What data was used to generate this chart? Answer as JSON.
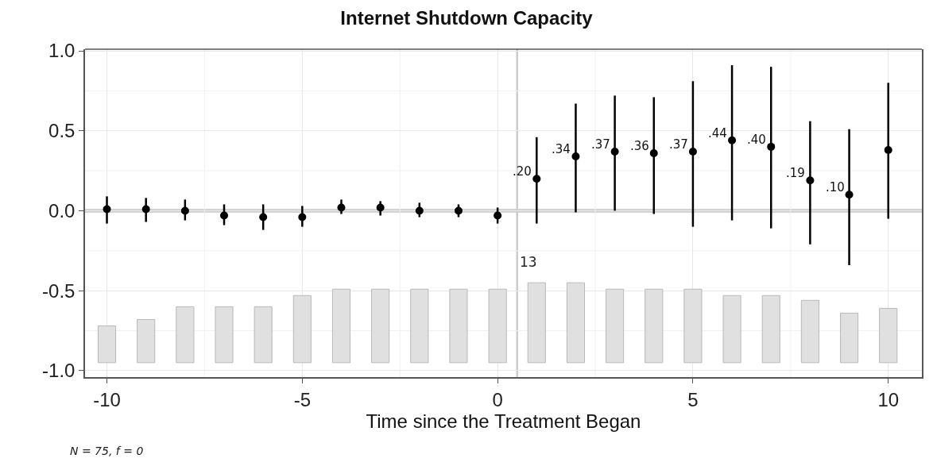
{
  "chart_data": {
    "type": "bar",
    "title": "Internet Shutdown Capacity",
    "xlabel": "Time since the Treatment Began",
    "series": [
      {
        "color": "#e0e0e0",
        "x": [
          -10,
          -9,
          -8,
          -7,
          -6,
          -5,
          -4,
          -3,
          -2,
          -1,
          0,
          1,
          2,
          3,
          4,
          5,
          6,
          7,
          8,
          9,
          10
        ],
        "base": [
          -0.95,
          -0.95,
          -0.95,
          -0.95,
          -0.95,
          -0.95,
          -0.95,
          -0.95,
          -0.95,
          -0.95,
          -0.95,
          -0.95,
          -0.95,
          -0.95,
          -0.95,
          -0.95,
          -0.95,
          -0.95,
          -0.95,
          -0.95,
          -0.95
        ],
        "values": [
          0.23,
          0.27,
          0.35,
          0.35,
          0.35,
          0.42,
          0.46,
          0.46,
          0.46,
          0.46,
          0.46,
          0.5,
          0.5,
          0.46,
          0.46,
          0.46,
          0.42,
          0.42,
          0.39,
          0.31,
          0.34
        ]
      },
      {
        "type": "scatter",
        "color": "#000000",
        "marker": "circle",
        "x": [
          -10,
          -9,
          -8,
          -7,
          -6,
          -5,
          -4,
          -3,
          -2,
          -1,
          0,
          1,
          2,
          3,
          4,
          5,
          6,
          7,
          8,
          9,
          10
        ],
        "values": [
          0.01,
          0.01,
          0.0,
          -0.03,
          -0.04,
          -0.04,
          0.02,
          0.02,
          0.0,
          0.0,
          -0.03,
          0.2,
          0.34,
          0.37,
          0.36,
          0.37,
          0.44,
          0.4,
          0.19,
          0.1,
          0.38
        ],
        "errors": [
          [
            -0.08,
            0.09
          ],
          [
            -0.07,
            0.08
          ],
          [
            -0.06,
            0.07
          ],
          [
            -0.09,
            0.04
          ],
          [
            -0.12,
            0.04
          ],
          [
            -0.1,
            0.03
          ],
          [
            -0.02,
            0.07
          ],
          [
            -0.03,
            0.06
          ],
          [
            -0.04,
            0.05
          ],
          [
            -0.04,
            0.04
          ],
          [
            -0.08,
            0.02
          ],
          [
            -0.08,
            0.46
          ],
          [
            -0.01,
            0.67
          ],
          [
            0.0,
            0.72
          ],
          [
            -0.02,
            0.71
          ],
          [
            -0.1,
            0.81
          ],
          [
            -0.06,
            0.91
          ],
          [
            -0.11,
            0.9
          ],
          [
            -0.21,
            0.56
          ],
          [
            -0.34,
            0.51
          ],
          [
            -0.05,
            0.8
          ]
        ],
        "value_labels": [
          null,
          null,
          null,
          null,
          null,
          null,
          null,
          null,
          null,
          null,
          null,
          ".20",
          ".34",
          ".37",
          ".36",
          ".37",
          ".44",
          ".40",
          ".19",
          ".10",
          null
        ]
      }
    ],
    "xlim": [
      -10.56,
      10.86
    ],
    "xticks": [
      -10,
      -5,
      0,
      5,
      10
    ],
    "ylim": [
      -1.04,
      1.01
    ],
    "yticks": [
      {
        "value": -1,
        "label": "-1.0"
      },
      {
        "value": -0.5,
        "label": "-0.5"
      },
      {
        "value": 0,
        "label": "0.0"
      },
      {
        "value": 0.5,
        "label": "0.5"
      },
      {
        "value": 1,
        "label": "1.0"
      }
    ],
    "ref_lines": [
      {
        "axis": "y",
        "value": 0,
        "color": "#d3d3d3"
      },
      {
        "axis": "x",
        "value": 0.5,
        "color": "#cccccc"
      }
    ],
    "annotations": [
      "13",
      "N = 75, f = 0"
    ],
    "grid": true
  }
}
